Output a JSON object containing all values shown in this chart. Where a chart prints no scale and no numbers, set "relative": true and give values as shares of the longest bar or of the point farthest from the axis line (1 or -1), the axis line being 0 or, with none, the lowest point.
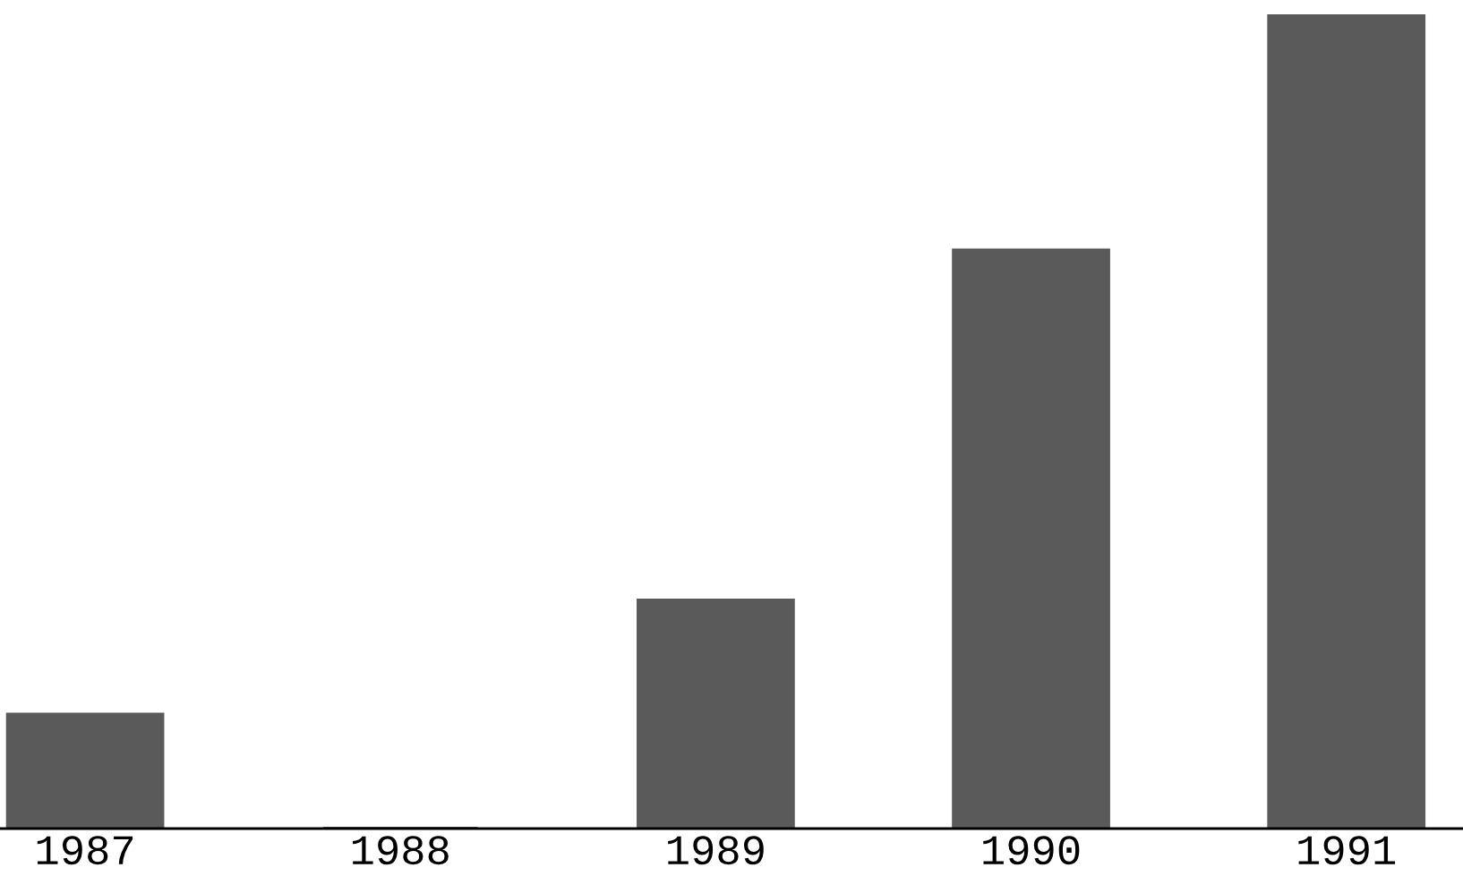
{
  "chart_data": {
    "type": "bar",
    "relative": true,
    "categories": [
      "1987",
      "1988",
      "1989",
      "1990",
      "1991"
    ],
    "values": [
      0.14,
      0,
      0.28,
      0.71,
      1
    ],
    "color": "#5a5a5a",
    "grid": false,
    "legend": false
  }
}
